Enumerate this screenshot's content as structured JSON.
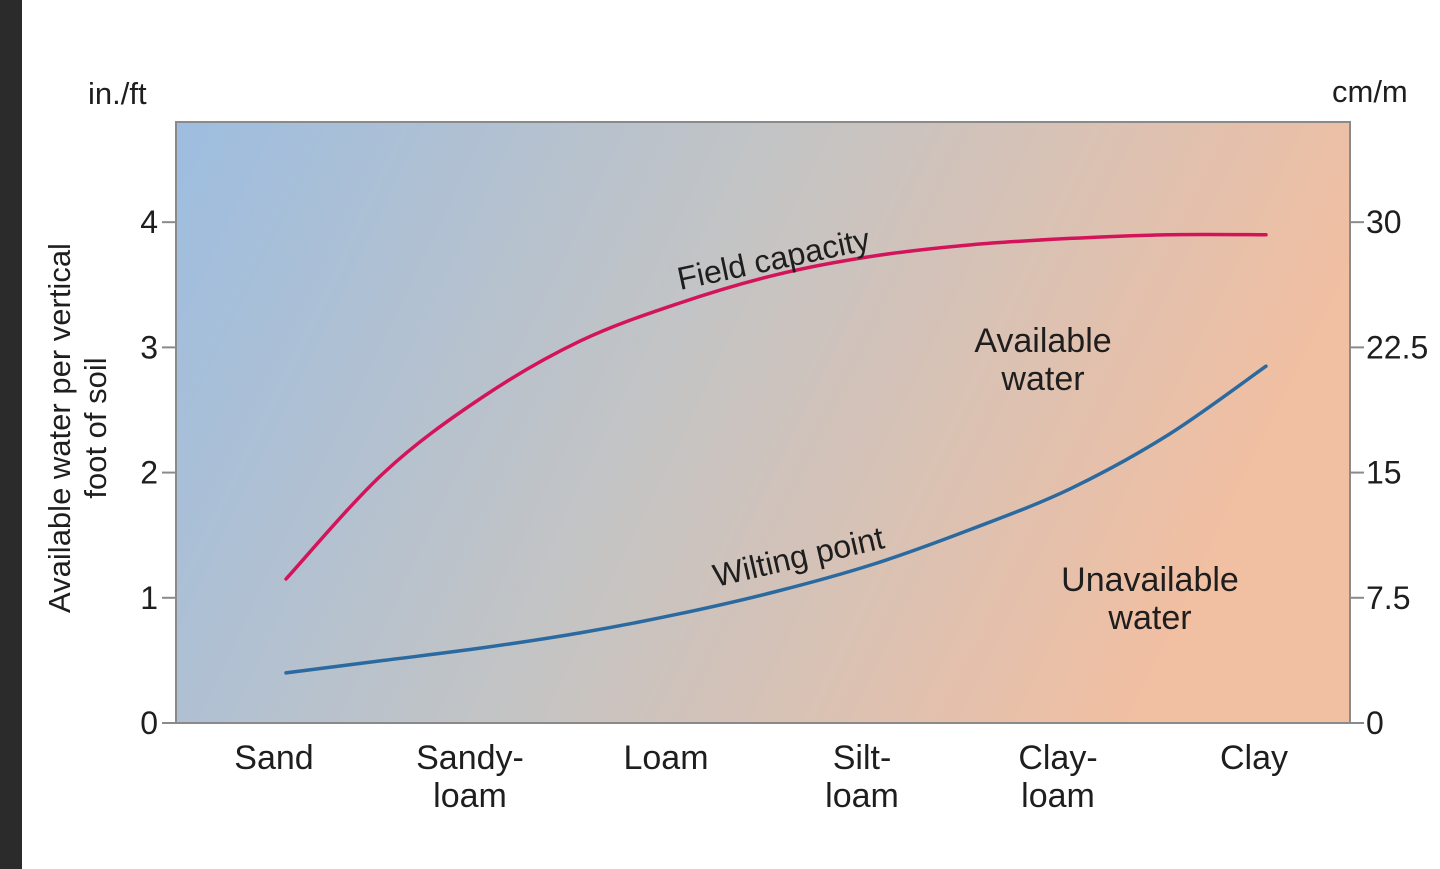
{
  "chart_data": {
    "type": "line",
    "categories": [
      "Sand",
      "Sandy-\nloam",
      "Loam",
      "Silt-\nloam",
      "Clay-\nloam",
      "Clay"
    ],
    "series": [
      {
        "name": "Field capacity",
        "x": [
          0,
          0.5,
          1,
          1.5,
          2,
          2.5,
          3,
          3.5,
          4,
          4.5,
          5
        ],
        "values": [
          1.15,
          2.0,
          2.6,
          3.05,
          3.35,
          3.58,
          3.73,
          3.82,
          3.87,
          3.9,
          3.9
        ],
        "color": "#d4145a"
      },
      {
        "name": "Wilting point",
        "x": [
          0,
          0.5,
          1,
          1.5,
          2,
          2.5,
          3,
          3.5,
          4,
          4.5,
          5
        ],
        "values": [
          0.4,
          0.5,
          0.6,
          0.72,
          0.87,
          1.05,
          1.27,
          1.55,
          1.87,
          2.3,
          2.85
        ],
        "color": "#2a6aa0"
      }
    ],
    "y_left": {
      "unit": "in./ft",
      "ticks": [
        0,
        1,
        2,
        3,
        4
      ],
      "range": [
        0,
        4.8
      ]
    },
    "y_right": {
      "unit": "cm/m",
      "ticks": [
        "0",
        "7.5",
        "15",
        "22.5",
        "30"
      ]
    },
    "ylabel_lines": [
      "Available water per vertical",
      "foot of soil"
    ],
    "annotations": {
      "available_water": [
        "Available",
        "water"
      ],
      "unavailable_water": [
        "Unavailable",
        "water"
      ]
    },
    "background_gradient": [
      "#9dbde0",
      "#c4c4c4",
      "#f1bfa2"
    ],
    "grid": false
  }
}
